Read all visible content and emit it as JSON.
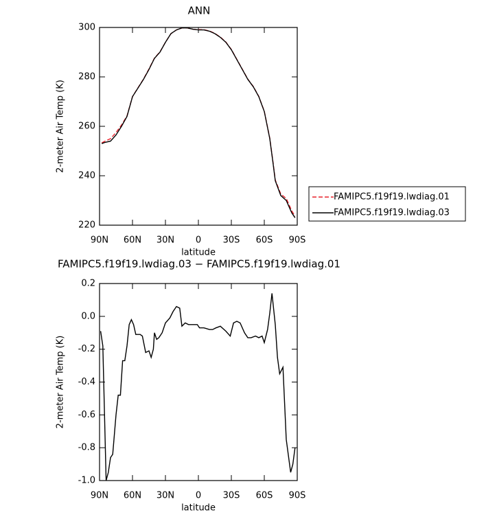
{
  "chart_data": [
    {
      "type": "line",
      "title": "ANN",
      "ylabel": "2-meter Air Temp (K)",
      "xlabel": "latitude",
      "x": [
        88,
        85,
        80,
        75,
        70,
        65,
        60,
        55,
        50,
        45,
        40,
        35,
        30,
        25,
        20,
        15,
        10,
        5,
        0,
        -5,
        -10,
        -15,
        -20,
        -25,
        -30,
        -35,
        -40,
        -45,
        -50,
        -55,
        -60,
        -65,
        -68,
        -70,
        -75,
        -80,
        -85,
        -88
      ],
      "series": [
        {
          "name": "FAMIPC5.f19f19.lwdiag.01",
          "color": "#e8202a",
          "dashed": true,
          "values": [
            253.3,
            254,
            255,
            257.5,
            260.5,
            264.2,
            272,
            275.6,
            279.1,
            283.2,
            287.6,
            290.1,
            294,
            297.5,
            299,
            299.8,
            299.8,
            299.3,
            299.1,
            299.1,
            298.6,
            297.6,
            296.1,
            294.1,
            291.1,
            287.1,
            283.1,
            279.1,
            276.1,
            272.1,
            266.1,
            255.2,
            245.3,
            238.3,
            232.6,
            230.8,
            225.8,
            223.6
          ]
        },
        {
          "name": "FAMIPC5.f19f19.lwdiag.03",
          "color": "#000000",
          "dashed": false,
          "values": [
            253,
            253.5,
            254,
            256.5,
            260,
            264,
            272,
            275.5,
            279,
            283,
            287.5,
            290,
            294,
            297.5,
            299,
            299.8,
            299.8,
            299.3,
            299,
            299,
            298.5,
            297.5,
            296,
            294,
            291,
            287,
            283,
            279,
            276,
            272,
            266,
            255,
            245,
            238,
            232,
            230,
            225,
            223
          ]
        }
      ],
      "xlim": [
        90,
        -90
      ],
      "xticks": [
        {
          "value": 90,
          "label": "90N"
        },
        {
          "value": 60,
          "label": "60N"
        },
        {
          "value": 30,
          "label": "30N"
        },
        0,
        {
          "value": -30,
          "label": "30S"
        },
        {
          "value": -60,
          "label": "60S"
        },
        {
          "value": -90,
          "label": "90S"
        }
      ],
      "ylim": [
        220,
        300
      ],
      "yticks": [
        220,
        240,
        260,
        280,
        300
      ],
      "legend": "right"
    },
    {
      "type": "line",
      "title": "FAMIPC5.f19f19.lwdiag.03 − FAMIPC5.f19f19.lwdiag.01",
      "ylabel": "2-meter Air Temp (K)",
      "xlabel": "latitude",
      "color": "#000000",
      "x": [
        89,
        87,
        84,
        82,
        80,
        78,
        75,
        73,
        71,
        69,
        67,
        65,
        63,
        61,
        59,
        57,
        53,
        51,
        48,
        45,
        43,
        41,
        40,
        38,
        36,
        33,
        30,
        26,
        23,
        20,
        17,
        15,
        12,
        9,
        5,
        1,
        -1,
        -5,
        -10,
        -13,
        -16,
        -20,
        -25,
        -29,
        -32,
        -35,
        -38,
        -42,
        -45,
        -48,
        -52,
        -55,
        -58,
        -60,
        -63,
        -65,
        -67,
        -70,
        -72,
        -74,
        -77,
        -80,
        -82,
        -84,
        -86,
        -88
      ],
      "values": [
        -0.09,
        -0.18,
        -1.0,
        -0.95,
        -0.86,
        -0.84,
        -0.6,
        -0.48,
        -0.48,
        -0.27,
        -0.27,
        -0.18,
        -0.05,
        -0.02,
        -0.05,
        -0.11,
        -0.11,
        -0.12,
        -0.22,
        -0.21,
        -0.25,
        -0.2,
        -0.1,
        -0.14,
        -0.13,
        -0.1,
        -0.04,
        -0.01,
        0.03,
        0.06,
        0.05,
        -0.06,
        -0.04,
        -0.05,
        -0.05,
        -0.05,
        -0.07,
        -0.07,
        -0.08,
        -0.08,
        -0.07,
        -0.06,
        -0.09,
        -0.12,
        -0.04,
        -0.03,
        -0.04,
        -0.1,
        -0.13,
        -0.13,
        -0.12,
        -0.13,
        -0.12,
        -0.16,
        -0.08,
        0.02,
        0.14,
        -0.05,
        -0.25,
        -0.35,
        -0.31,
        -0.75,
        -0.85,
        -0.95,
        -0.9,
        -0.8
      ],
      "xlim": [
        90,
        -90
      ],
      "xticks": [
        {
          "value": 90,
          "label": "90N"
        },
        {
          "value": 60,
          "label": "60N"
        },
        {
          "value": 30,
          "label": "30N"
        },
        0,
        {
          "value": -30,
          "label": "30S"
        },
        {
          "value": -60,
          "label": "60S"
        },
        {
          "value": -90,
          "label": "90S"
        }
      ],
      "ylim": [
        -1,
        0.2
      ],
      "yticks": [
        {
          "value": -1,
          "label": "-1.0"
        },
        -0.8,
        -0.6,
        -0.4,
        -0.2,
        {
          "value": 0,
          "label": "0.0"
        },
        0.2
      ]
    }
  ]
}
